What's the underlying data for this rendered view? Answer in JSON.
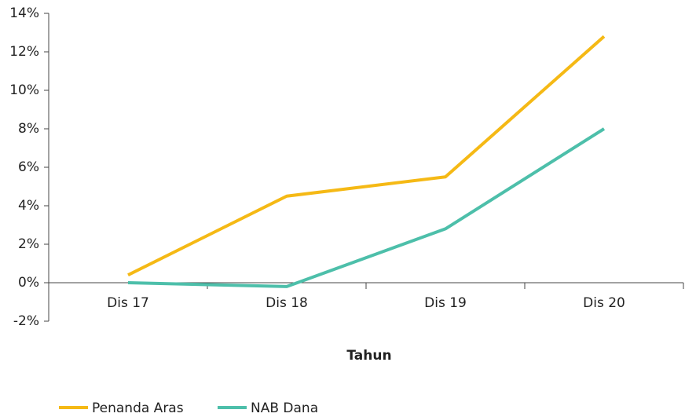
{
  "chart_data": {
    "type": "line",
    "categories": [
      "Dis 17",
      "Dis 18",
      "Dis 19",
      "Dis 20"
    ],
    "series": [
      {
        "name": "Penanda Aras",
        "color": "#f5b915",
        "values": [
          0.4,
          4.5,
          5.5,
          12.8
        ]
      },
      {
        "name": "NAB Dana",
        "color": "#4dbfaa",
        "values": [
          0.0,
          -0.2,
          2.8,
          8.0
        ]
      }
    ],
    "x_label": "Tahun",
    "ylim": [
      -2,
      14
    ],
    "yticks": [
      {
        "value": -2,
        "label": "-2%"
      },
      {
        "value": 0,
        "label": "0%"
      },
      {
        "value": 2,
        "label": "2%"
      },
      {
        "value": 4,
        "label": "4%"
      },
      {
        "value": 6,
        "label": "6%"
      },
      {
        "value": 8,
        "label": "8%"
      },
      {
        "value": 10,
        "label": "10%"
      },
      {
        "value": 12,
        "label": "12%"
      },
      {
        "value": 14,
        "label": "14%"
      }
    ],
    "legend": "bottom-left"
  }
}
